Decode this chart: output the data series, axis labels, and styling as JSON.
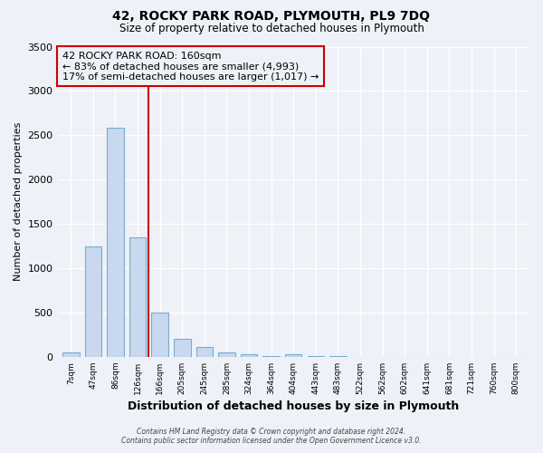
{
  "title1": "42, ROCKY PARK ROAD, PLYMOUTH, PL9 7DQ",
  "title2": "Size of property relative to detached houses in Plymouth",
  "xlabel": "Distribution of detached houses by size in Plymouth",
  "ylabel": "Number of detached properties",
  "bar_labels": [
    "7sqm",
    "47sqm",
    "86sqm",
    "126sqm",
    "166sqm",
    "205sqm",
    "245sqm",
    "285sqm",
    "324sqm",
    "364sqm",
    "404sqm",
    "443sqm",
    "483sqm",
    "522sqm",
    "562sqm",
    "602sqm",
    "641sqm",
    "681sqm",
    "721sqm",
    "760sqm",
    "800sqm"
  ],
  "bar_values": [
    50,
    1250,
    2580,
    1350,
    500,
    200,
    110,
    50,
    30,
    5,
    30,
    5,
    5,
    0,
    0,
    0,
    0,
    0,
    0,
    0,
    0
  ],
  "bar_color": "#c8d8ee",
  "bar_edgecolor": "#7aabcf",
  "vline_color": "#cc0000",
  "vline_idx": 4,
  "annotation_line1": "42 ROCKY PARK ROAD: 160sqm",
  "annotation_line2": "← 83% of detached houses are smaller (4,993)",
  "annotation_line3": "17% of semi-detached houses are larger (1,017) →",
  "ylim": [
    0,
    3500
  ],
  "yticks": [
    0,
    500,
    1000,
    1500,
    2000,
    2500,
    3000,
    3500
  ],
  "footer1": "Contains HM Land Registry data © Crown copyright and database right 2024.",
  "footer2": "Contains public sector information licensed under the Open Government Licence v3.0.",
  "bg_color": "#eef2f8",
  "grid_color": "#ffffff",
  "title_fontsize": 10,
  "subtitle_fontsize": 8.5,
  "ylabel_fontsize": 8,
  "xlabel_fontsize": 9,
  "tick_fontsize": 6.5,
  "ytick_fontsize": 8,
  "footer_fontsize": 5.5
}
